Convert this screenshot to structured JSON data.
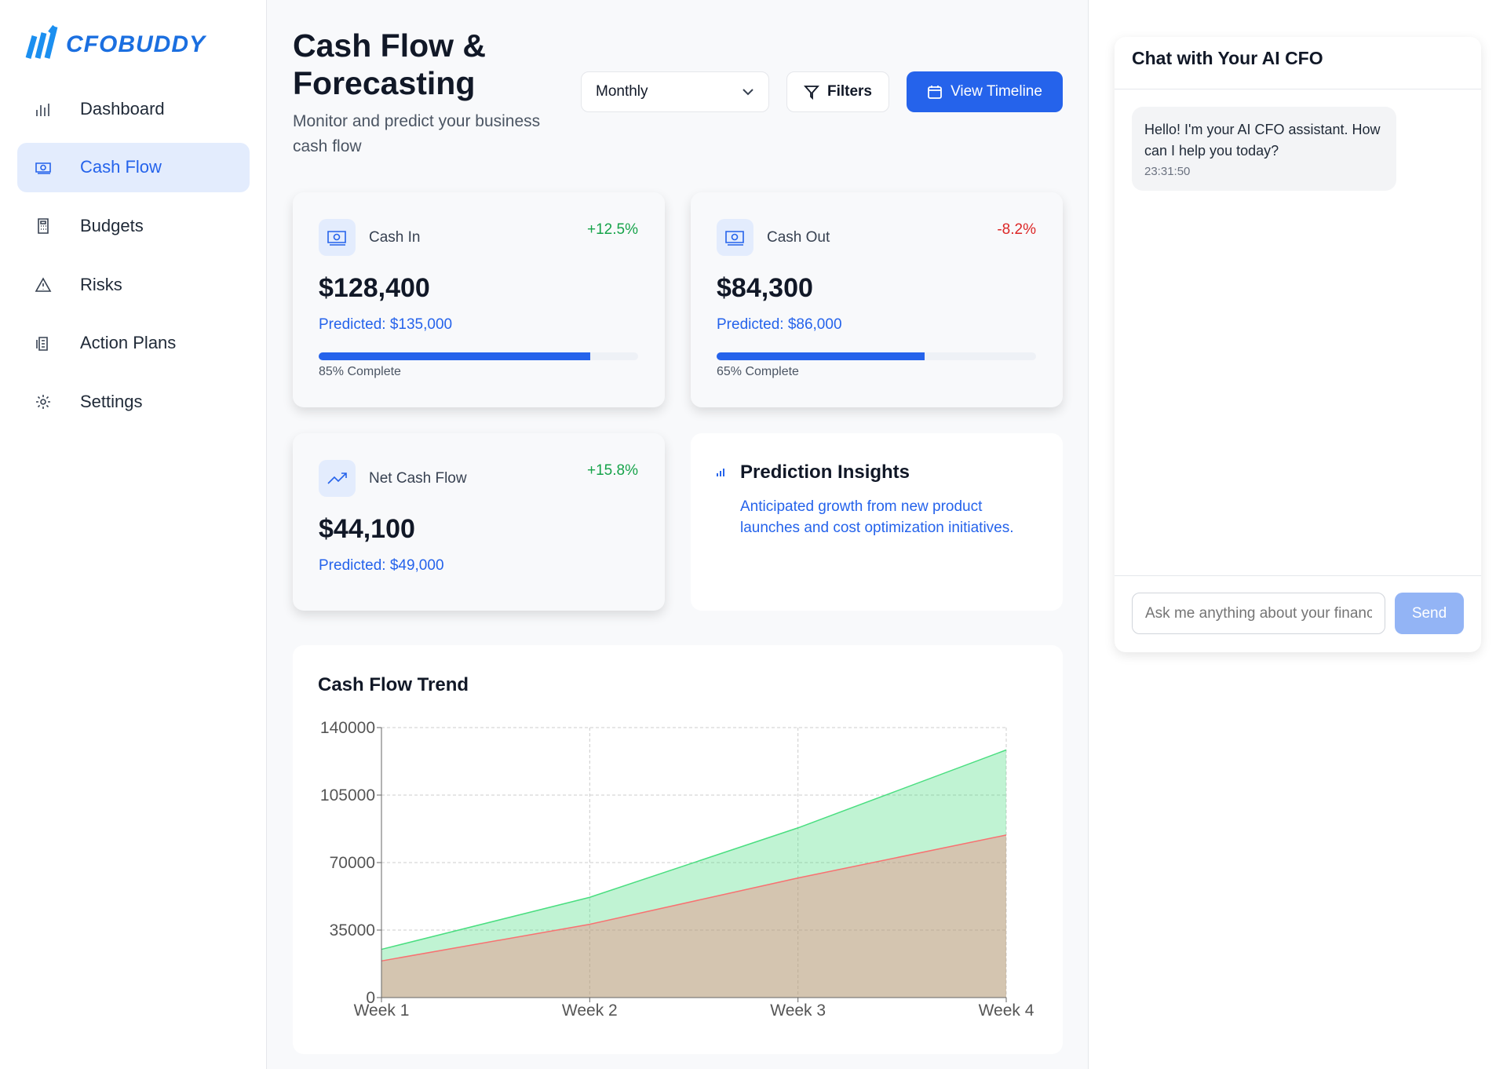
{
  "sidebar": {
    "logo": "CFOBUDDY",
    "active_index": 1,
    "nav": [
      {
        "label": "Dashboard"
      },
      {
        "label": "Cash Flow"
      },
      {
        "label": "Budgets"
      },
      {
        "label": "Risks"
      },
      {
        "label": "Action Plans"
      },
      {
        "label": "Settings"
      }
    ]
  },
  "header": {
    "title": "Cash Flow & Forecasting",
    "subtitle": "Monitor and predict your business cash flow",
    "period": "Monthly",
    "filters": "Filters",
    "view_timeline": "View Timeline"
  },
  "metrics": [
    {
      "label": "Cash In",
      "change": "+12.5%",
      "trend": "up",
      "amount": "$128,400",
      "predicted": "Predicted: $135,000",
      "progress": 85,
      "progress_label": "85% Complete"
    },
    {
      "label": "Cash Out",
      "change": "-8.2%",
      "trend": "down",
      "amount": "$84,300",
      "predicted": "Predicted: $86,000",
      "progress": 65,
      "progress_label": "65% Complete"
    },
    {
      "label": "Net Cash Flow",
      "change": "+15.8%",
      "trend": "up",
      "amount": "$44,100",
      "predicted": "Predicted: $49,000"
    }
  ],
  "insights": {
    "title": "Prediction Insights",
    "text": "Anticipated growth from new product launches and cost optimization initiatives."
  },
  "chart": {
    "type": "area",
    "title": "Cash Flow Trend",
    "categories": [
      "Week 1",
      "Week 2",
      "Week 3",
      "Week 4"
    ],
    "series": [
      {
        "color": "#4ade80",
        "values": [
          25000,
          52000,
          88000,
          128400
        ]
      },
      {
        "color": "#f87171",
        "values": [
          19000,
          38000,
          62000,
          84300
        ]
      }
    ],
    "ylim": [
      0,
      140000
    ],
    "yticks": [
      0,
      35000,
      70000,
      105000,
      140000
    ],
    "grid": true
  },
  "chat": {
    "title": "Chat with Your AI CFO",
    "messages": [
      {
        "text": "Hello! I'm your AI CFO assistant. How can I help you today?",
        "time": "23:31:50"
      }
    ],
    "placeholder": "Ask me anything about your finances...",
    "send": "Send"
  }
}
